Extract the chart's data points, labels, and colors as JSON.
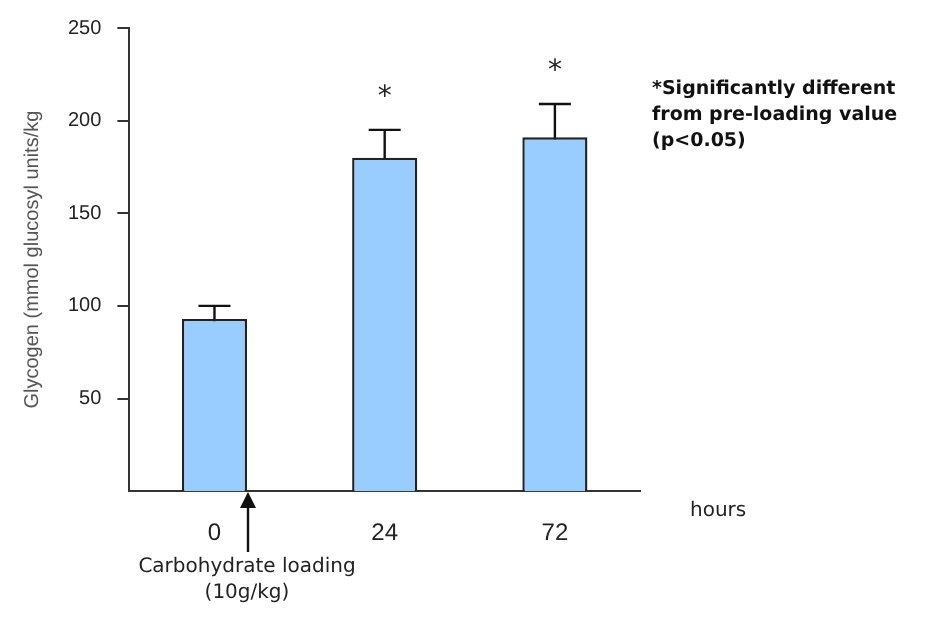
{
  "chart_data": {
    "type": "bar",
    "ylabel": "Glycogen (mmol glucosyl units/kg",
    "xlabel": "hours",
    "categories": [
      "0",
      "24",
      "72"
    ],
    "values": [
      93,
      180,
      191
    ],
    "errors": [
      7,
      15,
      18
    ],
    "color": "#99ccff",
    "ylim": [
      0,
      250
    ],
    "yticks": [
      50,
      100,
      150,
      200,
      250
    ],
    "grid": false,
    "legend": false,
    "annotations": [
      "*",
      "*",
      "Carbohydrate loading (10g/kg)",
      "*Significantly different from pre-loading value (p<0.05)"
    ]
  }
}
